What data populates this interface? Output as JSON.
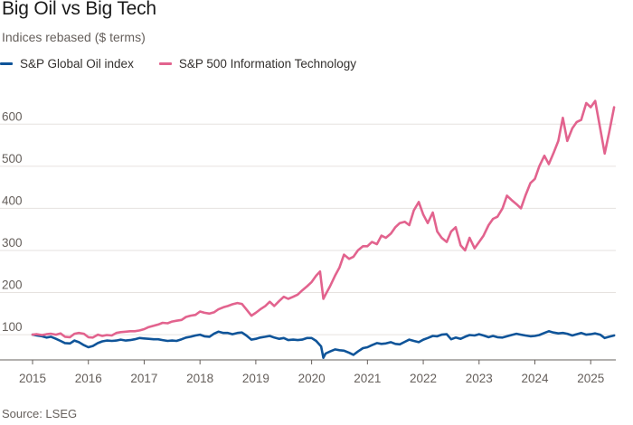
{
  "header": {
    "title": "Big Oil vs Big Tech",
    "subtitle": "Indices rebased ($ terms)"
  },
  "legend": [
    {
      "label": "S&P Global Oil index",
      "color": "#0f5499"
    },
    {
      "label": "S&P 500 Information Technology",
      "color": "#e2638e"
    }
  ],
  "source": "Source: LSEG",
  "chart_data": {
    "type": "line",
    "title": "Big Oil vs Big Tech",
    "subtitle": "Indices rebased ($ terms)",
    "xlabel": "",
    "ylabel": "",
    "xlim": [
      2015.0,
      2025.45
    ],
    "ylim": [
      40,
      680
    ],
    "yticks": [
      100,
      200,
      300,
      400,
      500,
      600
    ],
    "xticks": [
      2015,
      2016,
      2017,
      2018,
      2019,
      2020,
      2021,
      2022,
      2023,
      2024,
      2025
    ],
    "grid": "horizontal",
    "legend_position": "top-left",
    "series": [
      {
        "name": "S&P Global Oil index",
        "color": "#0f5499",
        "points": [
          [
            2015.0,
            100
          ],
          [
            2015.08,
            98
          ],
          [
            2015.17,
            96
          ],
          [
            2015.25,
            93
          ],
          [
            2015.33,
            95
          ],
          [
            2015.42,
            90
          ],
          [
            2015.5,
            85
          ],
          [
            2015.58,
            80
          ],
          [
            2015.67,
            79
          ],
          [
            2015.75,
            86
          ],
          [
            2015.83,
            82
          ],
          [
            2015.92,
            75
          ],
          [
            2016.0,
            70
          ],
          [
            2016.08,
            73
          ],
          [
            2016.17,
            80
          ],
          [
            2016.25,
            84
          ],
          [
            2016.33,
            86
          ],
          [
            2016.42,
            85
          ],
          [
            2016.5,
            86
          ],
          [
            2016.58,
            88
          ],
          [
            2016.67,
            86
          ],
          [
            2016.75,
            87
          ],
          [
            2016.83,
            89
          ],
          [
            2016.92,
            92
          ],
          [
            2017.0,
            91
          ],
          [
            2017.08,
            90
          ],
          [
            2017.17,
            89
          ],
          [
            2017.25,
            89
          ],
          [
            2017.33,
            87
          ],
          [
            2017.42,
            85
          ],
          [
            2017.5,
            86
          ],
          [
            2017.58,
            85
          ],
          [
            2017.67,
            89
          ],
          [
            2017.75,
            93
          ],
          [
            2017.83,
            95
          ],
          [
            2017.92,
            98
          ],
          [
            2018.0,
            100
          ],
          [
            2018.08,
            96
          ],
          [
            2018.17,
            95
          ],
          [
            2018.25,
            102
          ],
          [
            2018.33,
            107
          ],
          [
            2018.42,
            104
          ],
          [
            2018.5,
            104
          ],
          [
            2018.58,
            101
          ],
          [
            2018.67,
            104
          ],
          [
            2018.75,
            105
          ],
          [
            2018.83,
            98
          ],
          [
            2018.92,
            88
          ],
          [
            2019.0,
            90
          ],
          [
            2019.08,
            93
          ],
          [
            2019.17,
            95
          ],
          [
            2019.25,
            97
          ],
          [
            2019.33,
            93
          ],
          [
            2019.42,
            90
          ],
          [
            2019.5,
            92
          ],
          [
            2019.58,
            87
          ],
          [
            2019.67,
            88
          ],
          [
            2019.75,
            87
          ],
          [
            2019.83,
            88
          ],
          [
            2019.92,
            92
          ],
          [
            2020.0,
            92
          ],
          [
            2020.08,
            85
          ],
          [
            2020.17,
            72
          ],
          [
            2020.21,
            45
          ],
          [
            2020.25,
            55
          ],
          [
            2020.33,
            60
          ],
          [
            2020.42,
            65
          ],
          [
            2020.5,
            63
          ],
          [
            2020.58,
            62
          ],
          [
            2020.67,
            57
          ],
          [
            2020.75,
            52
          ],
          [
            2020.83,
            60
          ],
          [
            2020.92,
            68
          ],
          [
            2021.0,
            70
          ],
          [
            2021.08,
            75
          ],
          [
            2021.17,
            80
          ],
          [
            2021.25,
            78
          ],
          [
            2021.33,
            79
          ],
          [
            2021.42,
            82
          ],
          [
            2021.5,
            78
          ],
          [
            2021.58,
            77
          ],
          [
            2021.67,
            83
          ],
          [
            2021.75,
            88
          ],
          [
            2021.83,
            85
          ],
          [
            2021.92,
            82
          ],
          [
            2022.0,
            88
          ],
          [
            2022.08,
            92
          ],
          [
            2022.17,
            97
          ],
          [
            2022.25,
            96
          ],
          [
            2022.33,
            100
          ],
          [
            2022.42,
            101
          ],
          [
            2022.5,
            89
          ],
          [
            2022.58,
            93
          ],
          [
            2022.67,
            90
          ],
          [
            2022.75,
            95
          ],
          [
            2022.83,
            99
          ],
          [
            2022.92,
            98
          ],
          [
            2023.0,
            101
          ],
          [
            2023.08,
            98
          ],
          [
            2023.17,
            94
          ],
          [
            2023.25,
            97
          ],
          [
            2023.33,
            94
          ],
          [
            2023.42,
            93
          ],
          [
            2023.5,
            96
          ],
          [
            2023.58,
            99
          ],
          [
            2023.67,
            102
          ],
          [
            2023.75,
            100
          ],
          [
            2023.83,
            98
          ],
          [
            2023.92,
            96
          ],
          [
            2024.0,
            97
          ],
          [
            2024.08,
            99
          ],
          [
            2024.17,
            104
          ],
          [
            2024.25,
            108
          ],
          [
            2024.33,
            105
          ],
          [
            2024.42,
            103
          ],
          [
            2024.5,
            104
          ],
          [
            2024.58,
            102
          ],
          [
            2024.67,
            98
          ],
          [
            2024.75,
            101
          ],
          [
            2024.83,
            104
          ],
          [
            2024.92,
            100
          ],
          [
            2025.0,
            101
          ],
          [
            2025.08,
            103
          ],
          [
            2025.17,
            100
          ],
          [
            2025.25,
            92
          ],
          [
            2025.33,
            95
          ],
          [
            2025.42,
            98
          ]
        ]
      },
      {
        "name": "S&P 500 Information Technology",
        "color": "#e2638e",
        "points": [
          [
            2015.0,
            100
          ],
          [
            2015.08,
            101
          ],
          [
            2015.17,
            99
          ],
          [
            2015.25,
            101
          ],
          [
            2015.33,
            102
          ],
          [
            2015.42,
            100
          ],
          [
            2015.5,
            103
          ],
          [
            2015.58,
            95
          ],
          [
            2015.67,
            94
          ],
          [
            2015.75,
            102
          ],
          [
            2015.83,
            104
          ],
          [
            2015.92,
            102
          ],
          [
            2016.0,
            94
          ],
          [
            2016.08,
            93
          ],
          [
            2016.17,
            100
          ],
          [
            2016.25,
            97
          ],
          [
            2016.33,
            99
          ],
          [
            2016.42,
            98
          ],
          [
            2016.5,
            104
          ],
          [
            2016.58,
            106
          ],
          [
            2016.67,
            107
          ],
          [
            2016.75,
            108
          ],
          [
            2016.83,
            108
          ],
          [
            2016.92,
            110
          ],
          [
            2017.0,
            113
          ],
          [
            2017.08,
            118
          ],
          [
            2017.17,
            121
          ],
          [
            2017.25,
            124
          ],
          [
            2017.33,
            128
          ],
          [
            2017.42,
            127
          ],
          [
            2017.5,
            131
          ],
          [
            2017.58,
            133
          ],
          [
            2017.67,
            135
          ],
          [
            2017.75,
            142
          ],
          [
            2017.83,
            145
          ],
          [
            2017.92,
            147
          ],
          [
            2018.0,
            155
          ],
          [
            2018.08,
            152
          ],
          [
            2018.17,
            150
          ],
          [
            2018.25,
            153
          ],
          [
            2018.33,
            160
          ],
          [
            2018.42,
            165
          ],
          [
            2018.5,
            168
          ],
          [
            2018.58,
            172
          ],
          [
            2018.67,
            175
          ],
          [
            2018.75,
            173
          ],
          [
            2018.83,
            160
          ],
          [
            2018.92,
            145
          ],
          [
            2019.0,
            152
          ],
          [
            2019.08,
            160
          ],
          [
            2019.17,
            168
          ],
          [
            2019.25,
            178
          ],
          [
            2019.33,
            168
          ],
          [
            2019.42,
            180
          ],
          [
            2019.5,
            190
          ],
          [
            2019.58,
            185
          ],
          [
            2019.67,
            190
          ],
          [
            2019.75,
            195
          ],
          [
            2019.83,
            205
          ],
          [
            2019.92,
            215
          ],
          [
            2020.0,
            225
          ],
          [
            2020.08,
            240
          ],
          [
            2020.15,
            250
          ],
          [
            2020.21,
            185
          ],
          [
            2020.25,
            195
          ],
          [
            2020.33,
            215
          ],
          [
            2020.42,
            240
          ],
          [
            2020.5,
            260
          ],
          [
            2020.58,
            290
          ],
          [
            2020.67,
            280
          ],
          [
            2020.75,
            285
          ],
          [
            2020.83,
            300
          ],
          [
            2020.92,
            310
          ],
          [
            2021.0,
            310
          ],
          [
            2021.08,
            320
          ],
          [
            2021.17,
            315
          ],
          [
            2021.25,
            335
          ],
          [
            2021.33,
            330
          ],
          [
            2021.42,
            340
          ],
          [
            2021.5,
            355
          ],
          [
            2021.58,
            365
          ],
          [
            2021.67,
            368
          ],
          [
            2021.75,
            360
          ],
          [
            2021.83,
            395
          ],
          [
            2021.92,
            415
          ],
          [
            2022.0,
            385
          ],
          [
            2022.08,
            365
          ],
          [
            2022.17,
            390
          ],
          [
            2022.25,
            345
          ],
          [
            2022.33,
            330
          ],
          [
            2022.42,
            320
          ],
          [
            2022.5,
            345
          ],
          [
            2022.58,
            355
          ],
          [
            2022.67,
            312
          ],
          [
            2022.75,
            300
          ],
          [
            2022.83,
            330
          ],
          [
            2022.92,
            305
          ],
          [
            2023.0,
            320
          ],
          [
            2023.08,
            335
          ],
          [
            2023.17,
            360
          ],
          [
            2023.25,
            375
          ],
          [
            2023.33,
            380
          ],
          [
            2023.42,
            400
          ],
          [
            2023.5,
            430
          ],
          [
            2023.58,
            420
          ],
          [
            2023.67,
            410
          ],
          [
            2023.75,
            400
          ],
          [
            2023.83,
            430
          ],
          [
            2023.92,
            460
          ],
          [
            2024.0,
            470
          ],
          [
            2024.08,
            500
          ],
          [
            2024.17,
            525
          ],
          [
            2024.25,
            505
          ],
          [
            2024.33,
            530
          ],
          [
            2024.42,
            560
          ],
          [
            2024.5,
            615
          ],
          [
            2024.58,
            560
          ],
          [
            2024.67,
            590
          ],
          [
            2024.75,
            605
          ],
          [
            2024.83,
            610
          ],
          [
            2024.92,
            650
          ],
          [
            2025.0,
            640
          ],
          [
            2025.08,
            655
          ],
          [
            2025.17,
            590
          ],
          [
            2025.25,
            530
          ],
          [
            2025.33,
            580
          ],
          [
            2025.42,
            640
          ]
        ]
      }
    ]
  }
}
